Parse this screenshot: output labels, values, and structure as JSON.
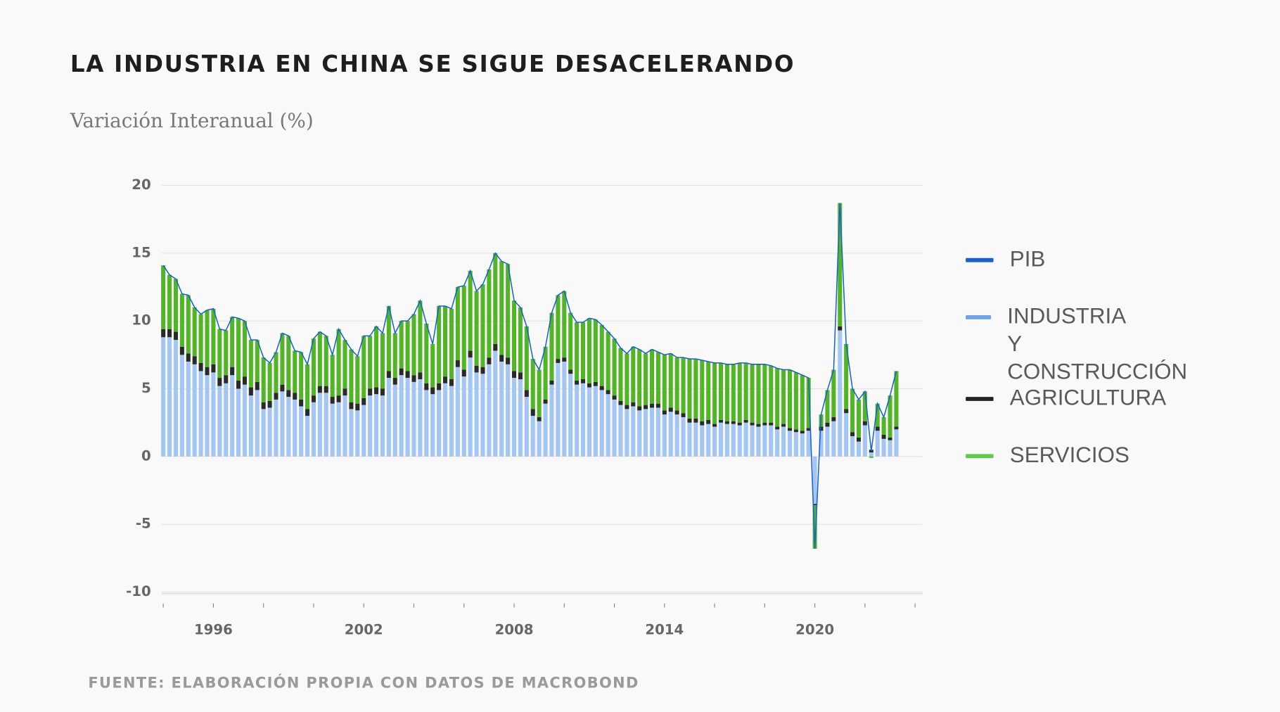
{
  "chart_data": {
    "type": "stacked_bar_line",
    "title": "LA INDUSTRIA EN CHINA SE SIGUE DESACELERANDO",
    "subtitle": "Variación Interanual (%)",
    "source": "FUENTE: ELABORACIÓN PROPIA CON DATOS DE MACROBOND",
    "x": [
      1994,
      1994.25,
      1994.5,
      1994.75,
      1995,
      1995.25,
      1995.5,
      1995.75,
      1996,
      1996.25,
      1996.5,
      1996.75,
      1997,
      1997.25,
      1997.5,
      1997.75,
      1998,
      1998.25,
      1998.5,
      1998.75,
      1999,
      1999.25,
      1999.5,
      1999.75,
      2000,
      2000.25,
      2000.5,
      2000.75,
      2001,
      2001.25,
      2001.5,
      2001.75,
      2002,
      2002.25,
      2002.5,
      2002.75,
      2003,
      2003.25,
      2003.5,
      2003.75,
      2004,
      2004.25,
      2004.5,
      2004.75,
      2005,
      2005.25,
      2005.5,
      2005.75,
      2006,
      2006.25,
      2006.5,
      2006.75,
      2007,
      2007.25,
      2007.5,
      2007.75,
      2008,
      2008.25,
      2008.5,
      2008.75,
      2009,
      2009.25,
      2009.5,
      2009.75,
      2010,
      2010.25,
      2010.5,
      2010.75,
      2011,
      2011.25,
      2011.5,
      2011.75,
      2012,
      2012.25,
      2012.5,
      2012.75,
      2013,
      2013.25,
      2013.5,
      2013.75,
      2014,
      2014.25,
      2014.5,
      2014.75,
      2015,
      2015.25,
      2015.5,
      2015.75,
      2016,
      2016.25,
      2016.5,
      2016.75,
      2017,
      2017.25,
      2017.5,
      2017.75,
      2018,
      2018.25,
      2018.5,
      2018.75,
      2019,
      2019.25,
      2019.5,
      2019.75,
      2020,
      2020.25,
      2020.5,
      2020.75,
      2021,
      2021.25,
      2021.5,
      2021.75,
      2022,
      2022.25,
      2022.5,
      2022.75,
      2023,
      2023.25
    ],
    "series": [
      {
        "name": "PIB",
        "color": "#1560d4",
        "kind": "line",
        "values": [
          14.1,
          13.4,
          13.1,
          12.0,
          11.9,
          11.0,
          10.5,
          10.8,
          10.9,
          9.4,
          9.3,
          10.3,
          10.2,
          10.0,
          8.6,
          8.6,
          7.3,
          6.9,
          7.7,
          9.1,
          8.9,
          7.8,
          7.7,
          6.8,
          8.7,
          9.2,
          8.9,
          7.5,
          9.4,
          8.6,
          7.9,
          7.4,
          8.9,
          8.9,
          9.6,
          9.1,
          11.1,
          9.1,
          10.0,
          10.0,
          10.5,
          11.5,
          9.8,
          8.3,
          11.1,
          11.1,
          10.9,
          12.5,
          12.6,
          13.7,
          12.2,
          12.7,
          13.8,
          15.0,
          14.4,
          14.2,
          11.5,
          11.0,
          9.6,
          7.2,
          6.4,
          8.1,
          10.6,
          11.9,
          12.2,
          10.6,
          9.9,
          9.9,
          10.2,
          10.1,
          9.7,
          9.2,
          8.7,
          8.0,
          7.6,
          8.1,
          7.9,
          7.6,
          7.9,
          7.7,
          7.5,
          7.6,
          7.3,
          7.3,
          7.2,
          7.2,
          7.1,
          7.0,
          6.9,
          6.9,
          6.8,
          6.8,
          6.9,
          6.9,
          6.8,
          6.8,
          6.8,
          6.7,
          6.5,
          6.4,
          6.4,
          6.2,
          6.0,
          5.8,
          -6.8,
          3.1,
          4.9,
          6.4,
          18.7,
          8.3,
          5.0,
          4.2,
          4.8,
          0.4,
          3.9,
          2.9,
          4.5,
          6.3
        ]
      },
      {
        "name": "INDUSTRIA\nY CONSTRUCCIÓN",
        "color": "#a4c6f4",
        "legend_color": "#6aa4f0",
        "kind": "bar",
        "values": [
          8.8,
          8.8,
          8.6,
          7.5,
          7.0,
          6.8,
          6.3,
          6.0,
          6.2,
          5.2,
          5.4,
          6.0,
          5.0,
          5.3,
          4.5,
          4.9,
          3.5,
          3.6,
          4.2,
          4.8,
          4.4,
          4.2,
          3.7,
          3.0,
          4.0,
          4.7,
          4.7,
          3.9,
          4.0,
          4.5,
          3.5,
          3.4,
          3.8,
          4.5,
          4.6,
          4.5,
          5.8,
          5.3,
          6.0,
          5.8,
          5.5,
          5.7,
          4.9,
          4.6,
          4.9,
          5.4,
          5.2,
          6.6,
          5.9,
          7.3,
          6.2,
          6.1,
          6.8,
          7.8,
          7.0,
          6.8,
          5.8,
          5.7,
          4.4,
          3.0,
          2.6,
          3.9,
          5.3,
          6.9,
          7.0,
          6.1,
          5.3,
          5.4,
          5.1,
          5.2,
          4.9,
          4.6,
          4.2,
          3.8,
          3.5,
          3.7,
          3.4,
          3.5,
          3.6,
          3.6,
          3.1,
          3.3,
          3.1,
          2.9,
          2.5,
          2.5,
          2.3,
          2.4,
          2.2,
          2.5,
          2.4,
          2.4,
          2.3,
          2.5,
          2.3,
          2.2,
          2.3,
          2.3,
          2.0,
          2.2,
          1.9,
          1.8,
          1.7,
          1.9,
          -3.5,
          1.9,
          2.2,
          2.6,
          9.3,
          3.2,
          1.5,
          1.1,
          2.3,
          0.3,
          1.9,
          1.3,
          1.2,
          2.0
        ]
      },
      {
        "name": "AGRICULTURA",
        "color": "#2a2a2a",
        "legend_color": "#222222",
        "kind": "bar",
        "values": [
          0.6,
          0.6,
          0.6,
          0.6,
          0.6,
          0.6,
          0.6,
          0.6,
          0.6,
          0.6,
          0.6,
          0.6,
          0.6,
          0.6,
          0.6,
          0.6,
          0.5,
          0.5,
          0.5,
          0.5,
          0.5,
          0.5,
          0.5,
          0.5,
          0.5,
          0.5,
          0.5,
          0.5,
          0.5,
          0.5,
          0.5,
          0.5,
          0.5,
          0.5,
          0.5,
          0.5,
          0.5,
          0.5,
          0.5,
          0.5,
          0.5,
          0.5,
          0.5,
          0.5,
          0.5,
          0.5,
          0.5,
          0.5,
          0.5,
          0.5,
          0.5,
          0.5,
          0.5,
          0.5,
          0.5,
          0.5,
          0.5,
          0.5,
          0.5,
          0.5,
          0.3,
          0.3,
          0.3,
          0.3,
          0.3,
          0.3,
          0.3,
          0.3,
          0.3,
          0.3,
          0.3,
          0.3,
          0.3,
          0.3,
          0.3,
          0.3,
          0.3,
          0.3,
          0.3,
          0.3,
          0.3,
          0.3,
          0.3,
          0.3,
          0.3,
          0.3,
          0.3,
          0.3,
          0.2,
          0.2,
          0.2,
          0.2,
          0.2,
          0.2,
          0.2,
          0.2,
          0.2,
          0.2,
          0.2,
          0.2,
          0.2,
          0.2,
          0.2,
          0.2,
          -0.1,
          0.3,
          0.3,
          0.3,
          0.3,
          0.3,
          0.3,
          0.3,
          0.3,
          0.2,
          0.3,
          0.3,
          0.2,
          0.2
        ]
      },
      {
        "name": "SERVICIOS",
        "color": "#52b526",
        "legend_color": "#5ccc45",
        "kind": "bar",
        "values": [
          4.7,
          4.0,
          3.9,
          3.9,
          4.3,
          3.6,
          3.6,
          4.2,
          4.1,
          3.6,
          3.3,
          3.7,
          4.6,
          4.1,
          3.5,
          3.1,
          3.3,
          2.8,
          3.0,
          3.8,
          4.0,
          3.1,
          3.5,
          3.3,
          4.2,
          4.0,
          3.7,
          3.1,
          4.9,
          3.6,
          3.9,
          3.5,
          4.6,
          3.9,
          4.5,
          4.1,
          4.8,
          3.3,
          3.5,
          3.7,
          4.5,
          5.3,
          4.4,
          3.2,
          5.7,
          5.2,
          5.2,
          5.4,
          6.2,
          5.9,
          5.5,
          6.1,
          6.5,
          6.7,
          6.9,
          6.9,
          5.2,
          4.8,
          4.7,
          3.7,
          3.5,
          3.9,
          5.0,
          4.7,
          4.9,
          4.2,
          4.3,
          4.2,
          4.8,
          4.6,
          4.5,
          4.3,
          4.2,
          3.9,
          3.8,
          4.1,
          4.2,
          3.8,
          4.0,
          3.8,
          4.1,
          4.0,
          3.9,
          4.1,
          4.4,
          4.4,
          4.5,
          4.3,
          4.5,
          4.2,
          4.2,
          4.2,
          4.4,
          4.2,
          4.3,
          4.4,
          4.3,
          4.2,
          4.3,
          4.0,
          4.3,
          4.2,
          4.1,
          3.7,
          -3.2,
          0.9,
          2.4,
          3.5,
          9.1,
          4.8,
          3.2,
          2.8,
          2.2,
          -0.1,
          1.7,
          1.3,
          3.1,
          4.1
        ]
      }
    ],
    "xlim": [
      1994,
      2024
    ],
    "xticks": [
      1996,
      2002,
      2008,
      2014,
      2020
    ],
    "xminorticks": [
      1994,
      1996,
      1998,
      2000,
      2002,
      2004,
      2006,
      2008,
      2010,
      2012,
      2014,
      2016,
      2018,
      2020,
      2022,
      2024
    ],
    "ylim": [
      -10,
      20
    ],
    "yticks": [
      -10,
      -5,
      0,
      5,
      10,
      15,
      20
    ],
    "grid": true,
    "legend": "right"
  }
}
